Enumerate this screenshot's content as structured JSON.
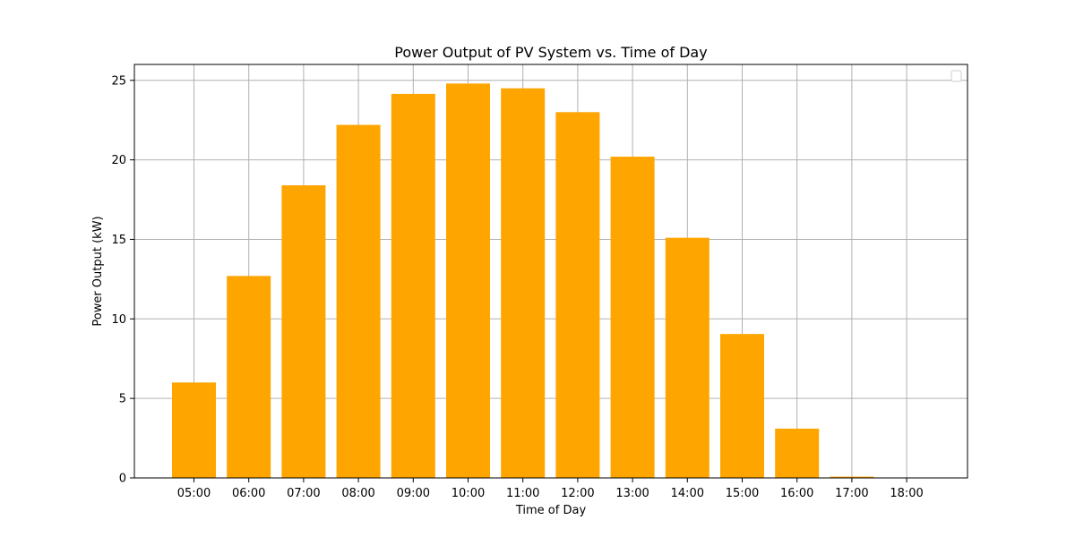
{
  "chart_data": {
    "type": "bar",
    "title": "Power Output of PV System vs. Time of Day",
    "xlabel": "Time of Day",
    "ylabel": "Power Output (kW)",
    "categories": [
      "05:00",
      "06:00",
      "07:00",
      "08:00",
      "09:00",
      "10:00",
      "11:00",
      "12:00",
      "13:00",
      "14:00",
      "15:00",
      "16:00",
      "17:00",
      "18:00"
    ],
    "values": [
      6.0,
      12.7,
      18.4,
      22.2,
      24.15,
      24.8,
      24.5,
      23.0,
      20.2,
      15.1,
      9.05,
      3.1,
      0.08,
      0.0
    ],
    "ylim": [
      0,
      26
    ],
    "yticks": [
      0,
      5,
      10,
      15,
      20,
      25
    ],
    "grid": true,
    "legend": "top-right (empty)",
    "bar_color": "#ffa500"
  }
}
